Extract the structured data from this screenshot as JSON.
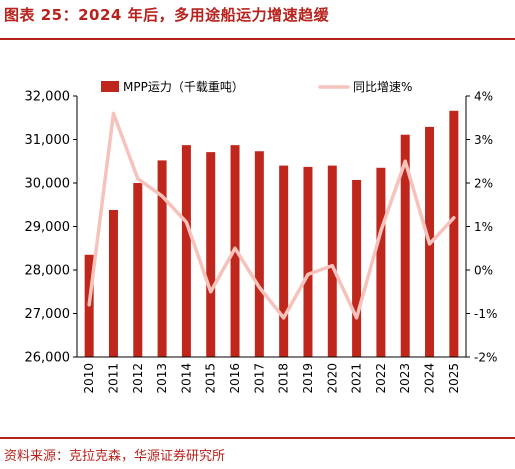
{
  "figure": {
    "title": "图表 25：2024 年后，多用途船运力增速趋缓",
    "source": "资料来源：克拉克森，华源证券研究所"
  },
  "colors": {
    "bar": "#c0271c",
    "line": "#f5c3bb",
    "accent": "#b8221d",
    "text": "#000000"
  },
  "chart_data": {
    "type": "bar",
    "categories": [
      "2010",
      "2011",
      "2012",
      "2013",
      "2014",
      "2015",
      "2016",
      "2017",
      "2018",
      "2019",
      "2020",
      "2021",
      "2022",
      "2023",
      "2024",
      "2025"
    ],
    "series": [
      {
        "name": "MPP运力（千载重吨）",
        "type": "bar",
        "axis": "left",
        "values": [
          28350,
          29380,
          30000,
          30520,
          30870,
          30710,
          30870,
          30730,
          30400,
          30370,
          30400,
          30070,
          30350,
          31110,
          31290,
          31660
        ]
      },
      {
        "name": "同比增速%",
        "type": "line",
        "axis": "right",
        "values": [
          -0.8,
          3.6,
          2.1,
          1.7,
          1.1,
          -0.5,
          0.5,
          -0.4,
          -1.1,
          -0.1,
          0.1,
          -1.1,
          0.9,
          2.5,
          0.6,
          1.2
        ]
      }
    ],
    "y_left": {
      "lim": [
        26000,
        32000
      ],
      "ticks": [
        "26,000",
        "27,000",
        "28,000",
        "29,000",
        "30,000",
        "31,000",
        "32,000"
      ]
    },
    "y_right": {
      "lim": [
        -2,
        4
      ],
      "ticks": [
        "-2%",
        "-1%",
        "0%",
        "1%",
        "2%",
        "3%",
        "4%"
      ]
    },
    "legend": "top",
    "grid": false
  }
}
